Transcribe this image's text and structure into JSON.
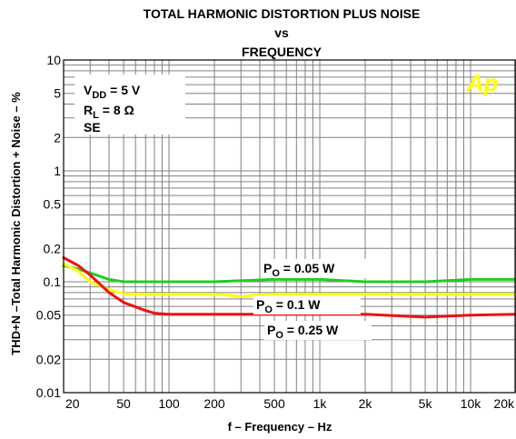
{
  "chart_data": {
    "type": "line",
    "title_lines": [
      "TOTAL HARMONIC DISTORTION PLUS NOISE",
      "vs",
      "FREQUENCY"
    ],
    "xlabel": "f – Frequency – Hz",
    "ylabel": "THD+N –Total Harmonic Distortion + Noise – %",
    "x_scale": "log",
    "y_scale": "log",
    "xlim": [
      20,
      20000
    ],
    "ylim": [
      0.01,
      10
    ],
    "x_ticks": [
      {
        "value": 20,
        "label": "20"
      },
      {
        "value": 50,
        "label": "50"
      },
      {
        "value": 100,
        "label": "100"
      },
      {
        "value": 200,
        "label": "200"
      },
      {
        "value": 500,
        "label": "500"
      },
      {
        "value": 1000,
        "label": "1k"
      },
      {
        "value": 2000,
        "label": "2k"
      },
      {
        "value": 5000,
        "label": "5k"
      },
      {
        "value": 10000,
        "label": "10k"
      },
      {
        "value": 20000,
        "label": "20k"
      }
    ],
    "y_ticks": [
      {
        "value": 10,
        "label": "10"
      },
      {
        "value": 5,
        "label": "5"
      },
      {
        "value": 2,
        "label": "2"
      },
      {
        "value": 1,
        "label": "1"
      },
      {
        "value": 0.5,
        "label": "0.5"
      },
      {
        "value": 0.2,
        "label": "0.2"
      },
      {
        "value": 0.1,
        "label": "0.1"
      },
      {
        "value": 0.05,
        "label": "0.05"
      },
      {
        "value": 0.02,
        "label": "0.02"
      },
      {
        "value": 0.01,
        "label": "0.01"
      }
    ],
    "grid": true,
    "conditions": [
      "VDD = 5 V",
      "RL = 8 Ω",
      "SE"
    ],
    "logo_text": "Ap",
    "colors": {
      "green": "#22cc22",
      "yellow": "#ffff00",
      "red": "#ee1111",
      "logo": "#ffff00",
      "grid": "#808080"
    },
    "series": [
      {
        "label": "PO = 0.05 W",
        "color": "#22cc22",
        "x": [
          20,
          25,
          30,
          40,
          50,
          70,
          100,
          200,
          500,
          1000,
          2000,
          5000,
          10000,
          20000
        ],
        "y": [
          0.14,
          0.13,
          0.12,
          0.105,
          0.1,
          0.1,
          0.1,
          0.1,
          0.105,
          0.105,
          0.1,
          0.1,
          0.105,
          0.105
        ]
      },
      {
        "label": "PO = 0.1 W",
        "color": "#ffff00",
        "x": [
          20,
          25,
          30,
          40,
          50,
          70,
          100,
          200,
          300,
          500,
          1000,
          2000,
          5000,
          10000,
          20000
        ],
        "y": [
          0.145,
          0.125,
          0.1,
          0.085,
          0.078,
          0.077,
          0.077,
          0.077,
          0.074,
          0.077,
          0.077,
          0.077,
          0.077,
          0.077,
          0.077
        ]
      },
      {
        "label": "PO = 0.25 W",
        "color": "#ee1111",
        "x": [
          20,
          25,
          30,
          40,
          50,
          70,
          80,
          100,
          200,
          500,
          1000,
          2000,
          5000,
          10000,
          20000
        ],
        "y": [
          0.165,
          0.14,
          0.115,
          0.08,
          0.065,
          0.055,
          0.052,
          0.051,
          0.051,
          0.051,
          0.051,
          0.051,
          0.048,
          0.05,
          0.051
        ]
      }
    ]
  }
}
